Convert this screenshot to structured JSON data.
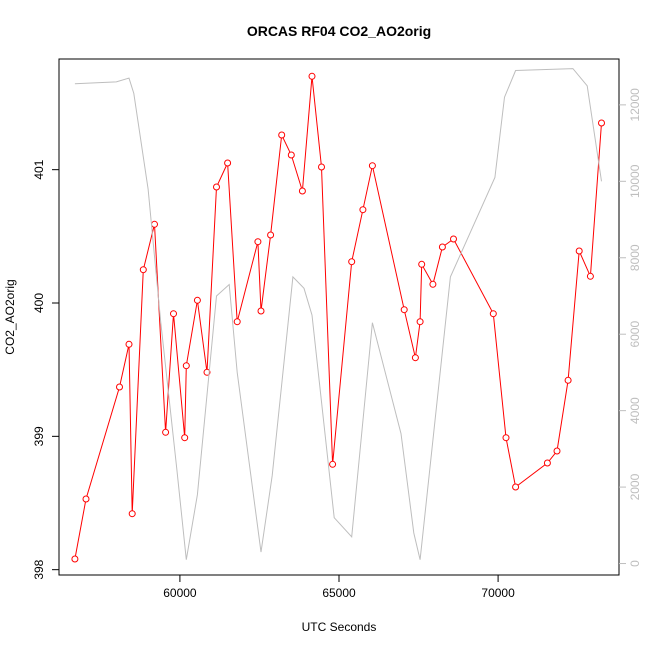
{
  "chart_data": {
    "type": "line",
    "title": "ORCAS RF04 CO2_AO2orig",
    "xlabel": "UTC Seconds",
    "ylabel": "CO2_AO2orig",
    "xlim": [
      56200,
      73800
    ],
    "ylim": [
      397.96,
      401.83
    ],
    "x_ticks": [
      60000,
      65000,
      70000
    ],
    "y_ticks": [
      398,
      399,
      400,
      401
    ],
    "y2lim": [
      -300,
      13200
    ],
    "y2_ticks": [
      0,
      2000,
      4000,
      6000,
      8000,
      10000,
      12000
    ],
    "grid": false,
    "series": [
      {
        "color": "#ff0000",
        "marker": "open-circle",
        "points": [
          [
            56700,
            398.08
          ],
          [
            57050,
            398.53
          ],
          [
            58100,
            399.37
          ],
          [
            58400,
            399.69
          ],
          [
            58500,
            398.42
          ],
          [
            58850,
            400.25
          ],
          [
            59200,
            400.59
          ],
          [
            59550,
            399.03
          ],
          [
            59800,
            399.92
          ],
          [
            60150,
            398.99
          ],
          [
            60200,
            399.53
          ],
          [
            60550,
            400.02
          ],
          [
            60850,
            399.48
          ],
          [
            61150,
            400.87
          ],
          [
            61500,
            401.05
          ],
          [
            61800,
            399.86
          ],
          [
            62450,
            400.46
          ],
          [
            62550,
            399.94
          ],
          [
            62850,
            400.51
          ],
          [
            63200,
            401.26
          ],
          [
            63500,
            401.11
          ],
          [
            63850,
            400.84
          ],
          [
            64150,
            401.7
          ],
          [
            64450,
            401.02
          ],
          [
            64800,
            398.79
          ],
          [
            65400,
            400.31
          ],
          [
            65750,
            400.7
          ],
          [
            66050,
            401.03
          ],
          [
            67050,
            399.95
          ],
          [
            67400,
            399.59
          ],
          [
            67550,
            399.86
          ],
          [
            67600,
            400.29
          ],
          [
            67950,
            400.14
          ],
          [
            68250,
            400.42
          ],
          [
            68600,
            400.48
          ],
          [
            69850,
            399.92
          ],
          [
            70250,
            398.99
          ],
          [
            70550,
            398.62
          ],
          [
            71550,
            398.8
          ],
          [
            71850,
            398.89
          ],
          [
            72200,
            399.42
          ],
          [
            72550,
            400.39
          ],
          [
            72900,
            400.2
          ],
          [
            73250,
            401.35
          ]
        ]
      },
      {
        "color": "#bebebe",
        "axis": "right",
        "points": [
          [
            56700,
            12550
          ],
          [
            58000,
            12600
          ],
          [
            58400,
            12700
          ],
          [
            58550,
            12300
          ],
          [
            59000,
            9800
          ],
          [
            59400,
            6300
          ],
          [
            59900,
            2500
          ],
          [
            60200,
            100
          ],
          [
            60550,
            1800
          ],
          [
            61150,
            7000
          ],
          [
            61550,
            7300
          ],
          [
            61800,
            5000
          ],
          [
            62550,
            300
          ],
          [
            62900,
            2300
          ],
          [
            63550,
            7500
          ],
          [
            63900,
            7200
          ],
          [
            64150,
            6500
          ],
          [
            64850,
            1200
          ],
          [
            65400,
            700
          ],
          [
            66050,
            6300
          ],
          [
            66950,
            3400
          ],
          [
            67350,
            800
          ],
          [
            67550,
            100
          ],
          [
            68500,
            7500
          ],
          [
            69900,
            10100
          ],
          [
            70200,
            12200
          ],
          [
            70550,
            12900
          ],
          [
            72350,
            12950
          ],
          [
            72800,
            12500
          ],
          [
            73250,
            10000
          ]
        ]
      }
    ]
  }
}
